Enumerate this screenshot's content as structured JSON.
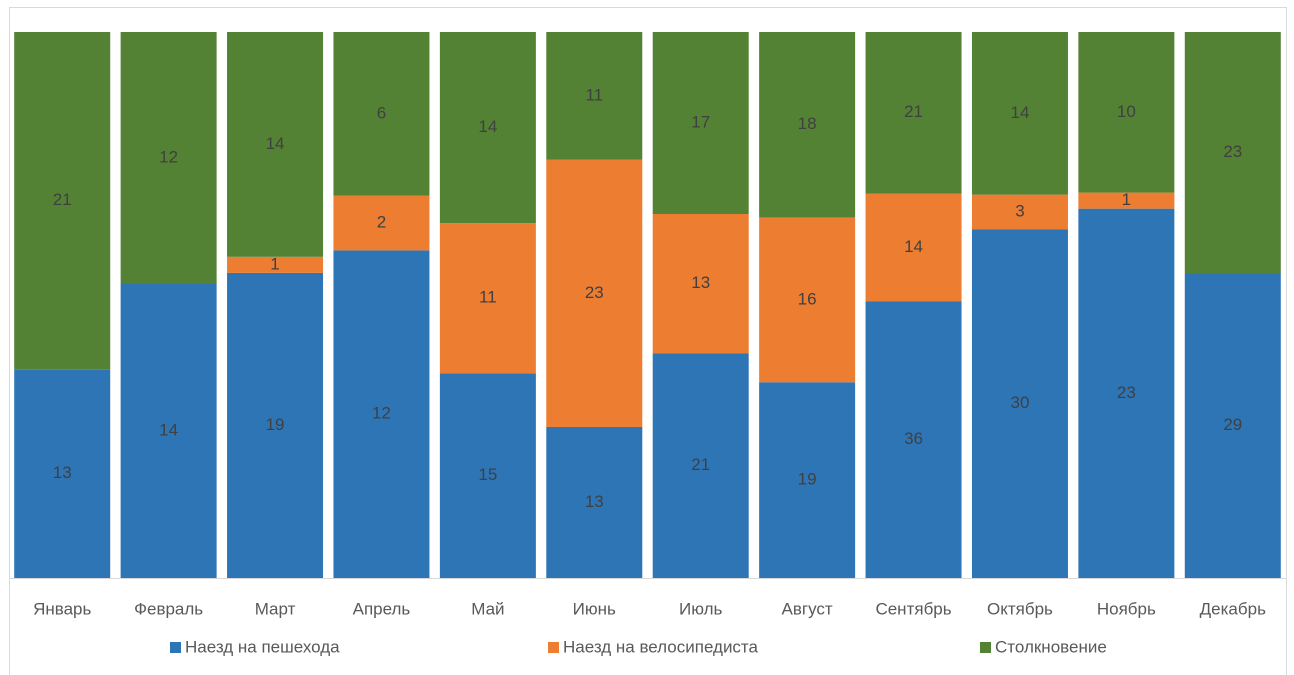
{
  "chart_data": {
    "type": "stacked_bar_100",
    "categories": [
      "Январь",
      "Февраль",
      "Март",
      "Апрель",
      "Май",
      "Июнь",
      "Июль",
      "Август",
      "Сентябрь",
      "Октябрь",
      "Ноябрь",
      "Декабрь"
    ],
    "series": [
      {
        "name": "Наезд на пешехода",
        "color": "#2e75b6",
        "values": [
          13,
          14,
          19,
          12,
          15,
          13,
          21,
          19,
          36,
          30,
          23,
          29
        ]
      },
      {
        "name": "Наезд на велосипедиста",
        "color": "#ed7d31",
        "values": [
          null,
          null,
          1,
          2,
          11,
          23,
          13,
          16,
          14,
          3,
          1,
          null
        ]
      },
      {
        "name": "Столкновение",
        "color": "#548235",
        "values": [
          21,
          12,
          14,
          6,
          14,
          11,
          17,
          18,
          21,
          14,
          10,
          23
        ]
      }
    ],
    "legend": "bottom"
  }
}
